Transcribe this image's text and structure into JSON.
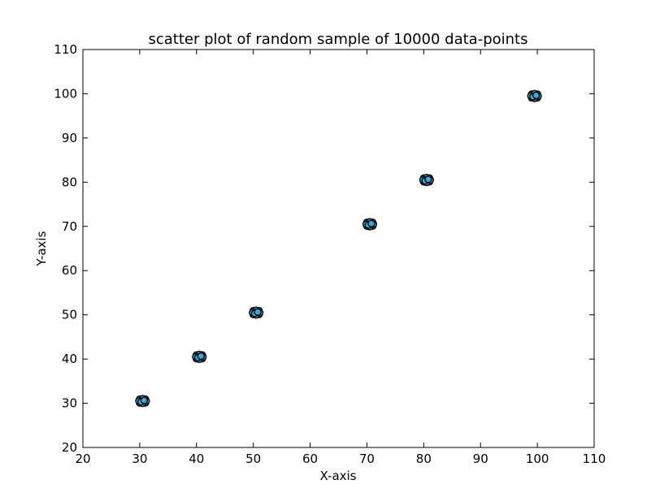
{
  "chart_data": {
    "type": "scatter",
    "title": "scatter plot of random sample of 10000 data-points",
    "xlabel": "X-axis",
    "ylabel": "Y-axis",
    "xlim": [
      20,
      110
    ],
    "ylim": [
      20,
      110
    ],
    "xticks": [
      "20",
      "30",
      "40",
      "50",
      "60",
      "70",
      "80",
      "90",
      "100",
      "110"
    ],
    "yticks": [
      "20",
      "30",
      "40",
      "50",
      "60",
      "70",
      "80",
      "90",
      "100",
      "110"
    ],
    "grid": false,
    "legend": "none",
    "marker_fill": "#3fa9d6",
    "marker_edge": "#000000",
    "clusters": [
      {
        "x": 30.5,
        "y": 30.5
      },
      {
        "x": 40.5,
        "y": 40.5
      },
      {
        "x": 50.5,
        "y": 50.5
      },
      {
        "x": 70.5,
        "y": 70.5
      },
      {
        "x": 80.5,
        "y": 80.5
      },
      {
        "x": 99.5,
        "y": 99.5
      }
    ]
  }
}
